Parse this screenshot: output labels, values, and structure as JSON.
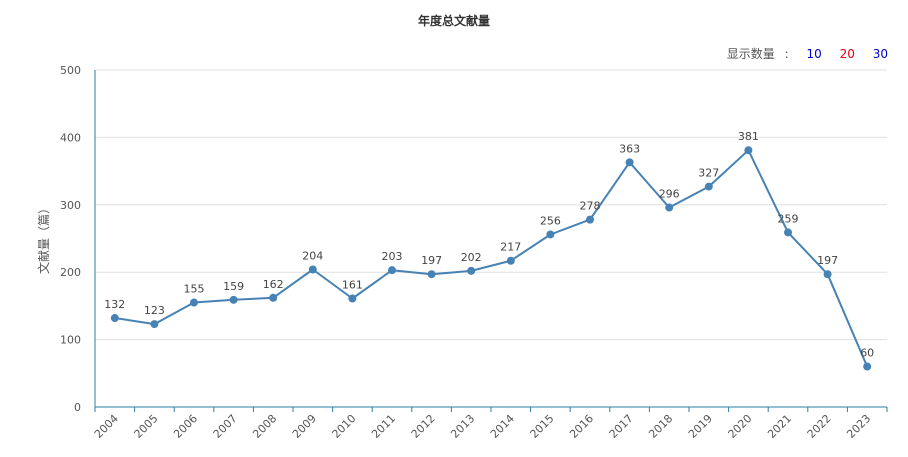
{
  "selector": {
    "label": "显示数量",
    "colon": ":",
    "options": [
      {
        "label": "10",
        "color": "#0000cc"
      },
      {
        "label": "20",
        "color": "#e60012"
      },
      {
        "label": "30",
        "color": "#0000cc"
      }
    ]
  },
  "colors": {
    "line": "#4682b4",
    "axis": "#2e7ea6",
    "grid": "#e0e0e0"
  },
  "chart_data": {
    "type": "line",
    "title": "年度总文献量",
    "xlabel": "",
    "ylabel": "文献量（篇）",
    "ylim": [
      0,
      500
    ],
    "yticks": [
      "0",
      "100",
      "200",
      "300",
      "400",
      "500"
    ],
    "grid": true,
    "legend": "none",
    "categories": [
      "2004",
      "2005",
      "2006",
      "2007",
      "2008",
      "2009",
      "2010",
      "2011",
      "2012",
      "2013",
      "2014",
      "2015",
      "2016",
      "2017",
      "2018",
      "2019",
      "2020",
      "2021",
      "2022",
      "2023"
    ],
    "values": [
      132,
      123,
      155,
      159,
      162,
      204,
      161,
      203,
      197,
      202,
      217,
      256,
      278,
      363,
      296,
      327,
      381,
      259,
      197,
      60
    ]
  }
}
